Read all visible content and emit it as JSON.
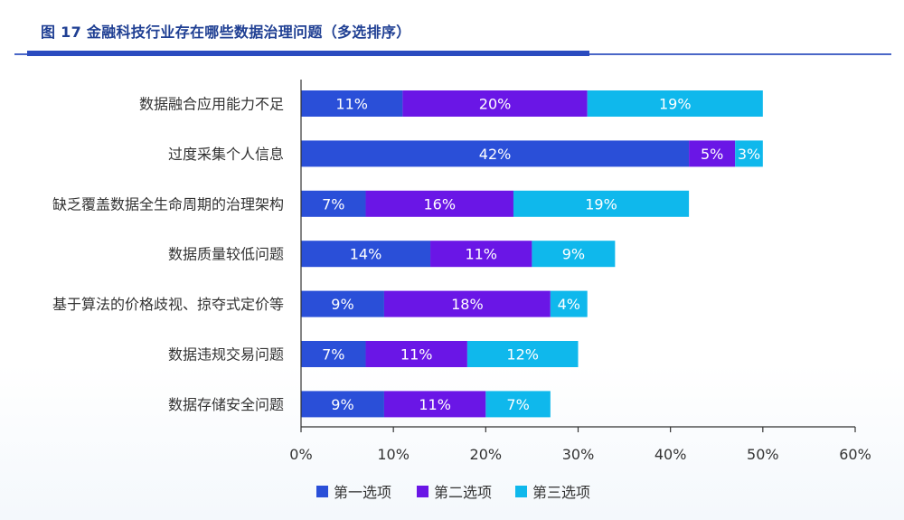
{
  "header": {
    "title": "图 17 金融科技行业存在哪些数据治理问题（多选排序）"
  },
  "colors": {
    "series1": "#2a4fd8",
    "series2": "#6a16e6",
    "series3": "#0fb8ec",
    "header_rule": "#2a4bbf",
    "axis": "#333333"
  },
  "chart_data": {
    "type": "bar",
    "orientation": "horizontal",
    "stacked": true,
    "categories": [
      "数据融合应用能力不足",
      "过度采集个人信息",
      "缺乏覆盖数据全生命周期的治理架构",
      "数据质量较低问题",
      "基于算法的价格歧视、掠夺式定价等",
      "数据违规交易问题",
      "数据存储安全问题"
    ],
    "series": [
      {
        "name": "第一选项",
        "values": [
          11,
          42,
          7,
          14,
          9,
          7,
          9
        ]
      },
      {
        "name": "第二选项",
        "values": [
          20,
          5,
          16,
          11,
          18,
          11,
          11
        ]
      },
      {
        "name": "第三选项",
        "values": [
          19,
          3,
          19,
          9,
          4,
          12,
          7
        ]
      }
    ],
    "data_labels": [
      [
        "11%",
        "20%",
        "19%"
      ],
      [
        "42%",
        "5%",
        "3%"
      ],
      [
        "7%",
        "16%",
        "19%"
      ],
      [
        "14%",
        "11%",
        "9%"
      ],
      [
        "9%",
        "18%",
        "4%"
      ],
      [
        "7%",
        "11%",
        "12%"
      ],
      [
        "9%",
        "11%",
        "7%"
      ]
    ],
    "xlim": [
      0,
      60
    ],
    "xticks": [
      "0%",
      "10%",
      "20%",
      "30%",
      "40%",
      "50%",
      "60%"
    ],
    "grid": false,
    "legend_position": "bottom"
  }
}
